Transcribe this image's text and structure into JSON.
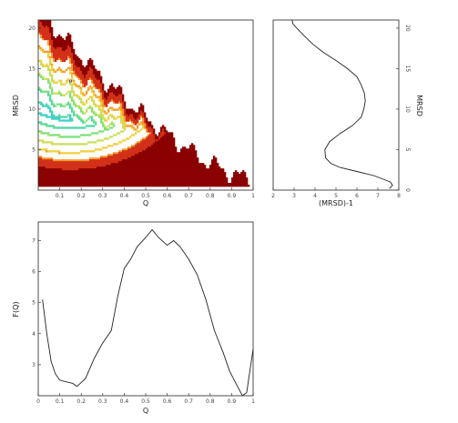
{
  "chart_data": [
    {
      "panel": "contour",
      "type": "contour",
      "xlabel": "Q",
      "ylabel": "MRSD",
      "xlim": [
        0,
        1
      ],
      "ylim": [
        0,
        21
      ],
      "xticks": [
        "0.1",
        "0.2",
        "0.3",
        "0.4",
        "0.5",
        "0.6",
        "0.7",
        "0.8",
        "0.9",
        "1"
      ],
      "yticks": [
        "5",
        "10",
        "15",
        "20"
      ],
      "minimum": {
        "x": 0.15,
        "y": 13.5
      },
      "level_colors": [
        "#0000cc",
        "#1f5fe6",
        "#2f90ee",
        "#38b8e8",
        "#40d0d0",
        "#50d8a8",
        "#7ee07a",
        "#c8e060",
        "#f0d040",
        "#f59a2a",
        "#d23018",
        "#8b0000"
      ]
    },
    {
      "panel": "marginal",
      "type": "line",
      "xlabel": "(MRSD)-1",
      "ylabel": "MRSD",
      "xlim": [
        2,
        8
      ],
      "ylim": [
        0,
        21
      ],
      "xticks": [
        "2",
        "3",
        "4",
        "5",
        "6",
        "7",
        "8"
      ],
      "yticks": [
        "0",
        "5",
        "10",
        "15",
        "20"
      ],
      "x": [
        2.9,
        2.95,
        3.2,
        3.5,
        3.9,
        4.4,
        5.0,
        5.55,
        6.0,
        6.2,
        6.35,
        6.4,
        6.33,
        6.2,
        5.8,
        5.2,
        4.7,
        4.47,
        4.5,
        4.75,
        5.2,
        6.0,
        6.8,
        7.2,
        7.6,
        7.7,
        7.55
      ],
      "y": [
        21.0,
        20.5,
        19.8,
        19.0,
        18.0,
        17.0,
        16.0,
        15.0,
        14.0,
        13.0,
        12.0,
        11.0,
        10.0,
        9.0,
        8.0,
        7.0,
        6.0,
        5.0,
        4.0,
        3.3,
        2.8,
        2.3,
        1.8,
        1.4,
        1.0,
        0.6,
        0.2
      ]
    },
    {
      "panel": "free-energy",
      "type": "line",
      "xlabel": "Q",
      "ylabel": "F(Q)",
      "xlim": [
        0,
        1
      ],
      "ylim": [
        2,
        7.6
      ],
      "xticks": [
        "0",
        "0.1",
        "0.2",
        "0.3",
        "0.4",
        "0.5",
        "0.6",
        "0.7",
        "0.8",
        "0.9",
        "1"
      ],
      "yticks": [
        "3",
        "4",
        "5",
        "6",
        "7"
      ],
      "x": [
        0.02,
        0.04,
        0.06,
        0.08,
        0.1,
        0.13,
        0.16,
        0.18,
        0.22,
        0.26,
        0.3,
        0.34,
        0.37,
        0.4,
        0.43,
        0.46,
        0.5,
        0.53,
        0.56,
        0.6,
        0.63,
        0.66,
        0.7,
        0.74,
        0.78,
        0.82,
        0.86,
        0.89,
        0.92,
        0.95,
        0.97,
        1.0
      ],
      "y": [
        5.1,
        4.0,
        3.1,
        2.7,
        2.5,
        2.45,
        2.4,
        2.3,
        2.55,
        3.2,
        3.7,
        4.1,
        5.2,
        6.1,
        6.4,
        6.8,
        7.1,
        7.35,
        7.1,
        6.85,
        7.0,
        6.8,
        6.4,
        5.9,
        5.1,
        4.1,
        3.4,
        2.8,
        2.4,
        2.0,
        2.1,
        3.5
      ]
    }
  ]
}
